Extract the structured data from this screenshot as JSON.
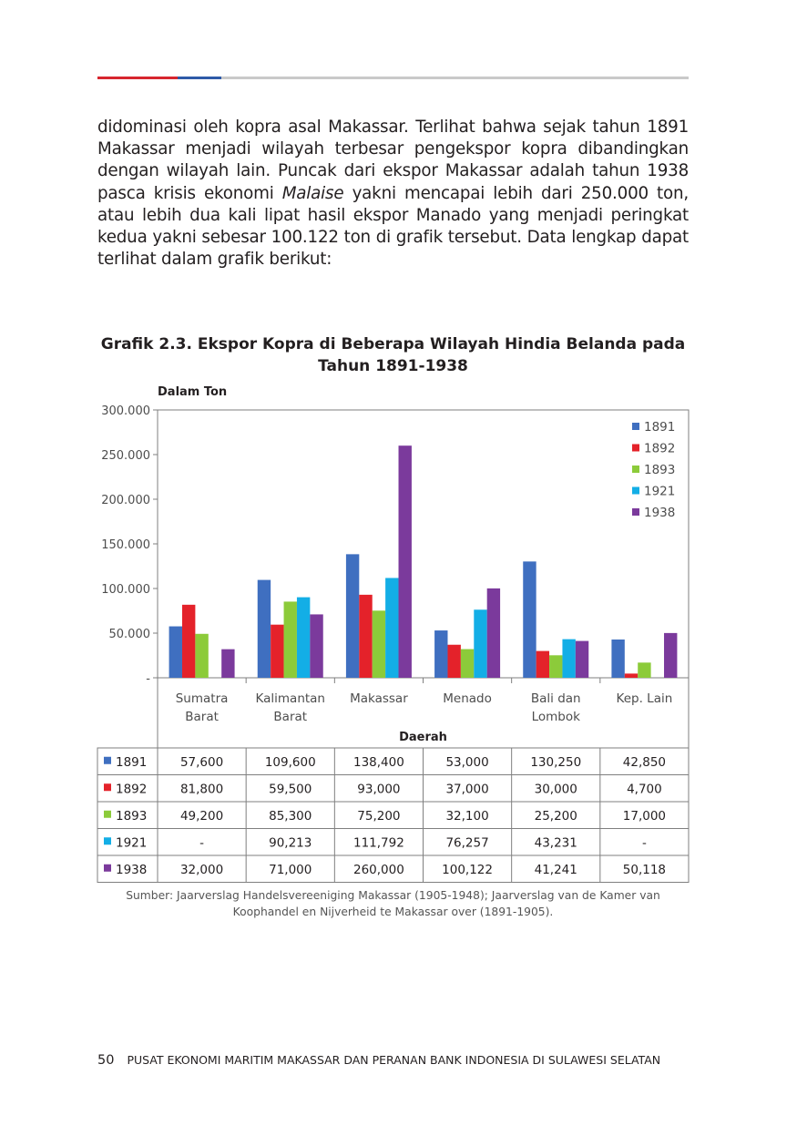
{
  "body_text": {
    "part1": "didominasi oleh kopra asal Makassar. Terlihat bahwa sejak tahun 1891 Makassar menjadi wilayah terbesar pengekspor kopra dibandingkan dengan wilayah lain. Puncak dari ekspor Makassar adalah tahun 1938 pasca krisis ekonomi ",
    "italic": "Malaise",
    "part2": " yakni mencapai lebih dari 250.000 ton, atau lebih dua kali lipat hasil ekspor Manado yang menjadi peringkat kedua yakni sebesar 100.122 ton di grafik tersebut. Data lengkap dapat terlihat dalam grafik berikut:"
  },
  "chart_title": "Grafik 2.3. Ekspor Kopra di Beberapa Wilayah Hindia Belanda pada Tahun 1891-1938",
  "source_note": "Sumber: Jaarverslag Handelsvereeniging Makassar (1905-1948); Jaarverslag van de Kamer van Koophandel en Nijverheid te Makassar over (1891-1905).",
  "footer": {
    "page_number": "50",
    "running_title": "PUSAT EKONOMI MARITIM MAKASSAR DAN PERANAN BANK INDONESIA DI SULAWESI SELATAN"
  },
  "chart_data": {
    "type": "bar",
    "ylabel": "Dalam Ton",
    "xlabel": "Daerah",
    "ylim": [
      0,
      300000
    ],
    "y_ticks": [
      "-",
      "50.000",
      "100.000",
      "150.000",
      "200.000",
      "250.000",
      "300.000"
    ],
    "legend_position": "top-right",
    "grid": false,
    "categories": [
      [
        "Sumatra",
        "Barat"
      ],
      [
        "Kalimantan",
        "Barat"
      ],
      [
        "Makassar"
      ],
      [
        "Menado"
      ],
      [
        "Bali dan",
        "Lombok"
      ],
      [
        "Kep. Lain"
      ]
    ],
    "series": [
      {
        "name": "1891",
        "color": "#3f6fc0",
        "values": [
          57600,
          109600,
          138400,
          53000,
          130250,
          42850
        ],
        "labels": [
          "57,600",
          "109,600",
          "138,400",
          "53,000",
          "130,250",
          "42,850"
        ]
      },
      {
        "name": "1892",
        "color": "#e4222a",
        "values": [
          81800,
          59500,
          93000,
          37000,
          30000,
          4700
        ],
        "labels": [
          "81,800",
          "59,500",
          "93,000",
          "37,000",
          "30,000",
          "4,700"
        ]
      },
      {
        "name": "1893",
        "color": "#8ccb3a",
        "values": [
          49200,
          85300,
          75200,
          32100,
          25200,
          17000
        ],
        "labels": [
          "49,200",
          "85,300",
          "75,200",
          "32,100",
          "25,200",
          "17,000"
        ]
      },
      {
        "name": "1921",
        "color": "#13aee6",
        "values": [
          null,
          90213,
          111792,
          76257,
          43231,
          null
        ],
        "labels": [
          "-",
          "90,213",
          "111,792",
          "76,257",
          "43,231",
          "-"
        ]
      },
      {
        "name": "1938",
        "color": "#7b3a9c",
        "values": [
          32000,
          71000,
          260000,
          100122,
          41241,
          50118
        ],
        "labels": [
          "32,000",
          "71,000",
          "260,000",
          "100,122",
          "41,241",
          "50,118"
        ]
      }
    ]
  }
}
